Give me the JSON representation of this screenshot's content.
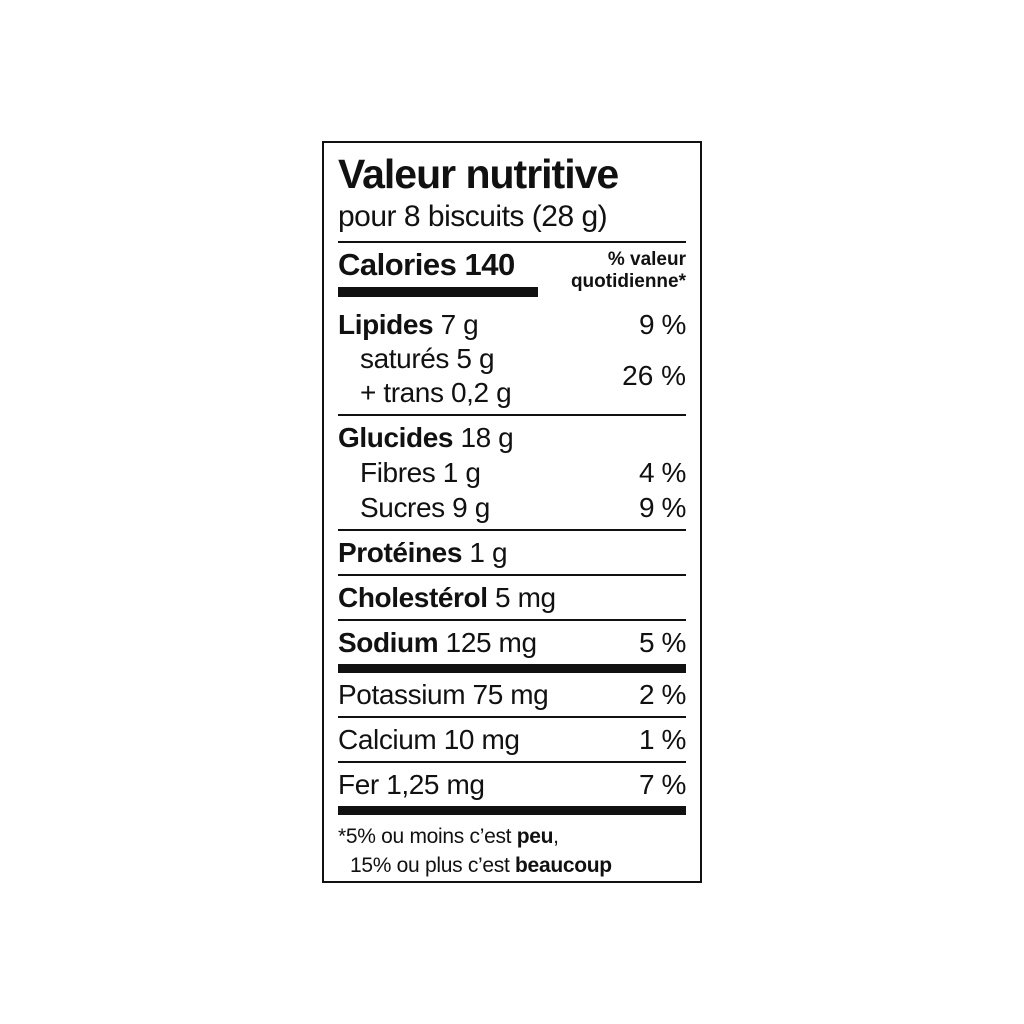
{
  "colors": {
    "ink": "#111111",
    "background": "#ffffff"
  },
  "label": {
    "title": "Valeur nutritive",
    "serving": "pour 8 biscuits (28 g)",
    "calories": {
      "label": "Calories",
      "value": "140"
    },
    "daily_value_header": {
      "line1": "% valeur",
      "line2": "quotidienne*"
    },
    "rows": {
      "lipides": {
        "name": "Lipides",
        "amount": "7 g",
        "dv": "9 %"
      },
      "satures": {
        "name": "saturés",
        "amount": "5 g"
      },
      "trans": {
        "name": "+ trans",
        "amount": "0,2 g"
      },
      "satures_trans_dv": "26 %",
      "glucides": {
        "name": "Glucides",
        "amount": "18 g"
      },
      "fibres": {
        "name": "Fibres",
        "amount": "1 g",
        "dv": "4 %"
      },
      "sucres": {
        "name": "Sucres",
        "amount": "9 g",
        "dv": "9 %"
      },
      "proteines": {
        "name": "Protéines",
        "amount": "1 g"
      },
      "cholesterol": {
        "name": "Cholestérol",
        "amount": "5 mg"
      },
      "sodium": {
        "name": "Sodium",
        "amount": "125 mg",
        "dv": "5 %"
      },
      "potassium": {
        "name": "Potassium",
        "amount": "75 mg",
        "dv": "2 %"
      },
      "calcium": {
        "name": "Calcium",
        "amount": "10 mg",
        "dv": "1 %"
      },
      "fer": {
        "name": "Fer",
        "amount": "1,25 mg",
        "dv": "7 %"
      }
    },
    "footnote": {
      "line1_prefix": "*5% ou moins c’est ",
      "line1_bold": "peu",
      "line1_suffix": ",",
      "line2_prefix": "15% ou plus c’est ",
      "line2_bold": "beaucoup"
    }
  }
}
